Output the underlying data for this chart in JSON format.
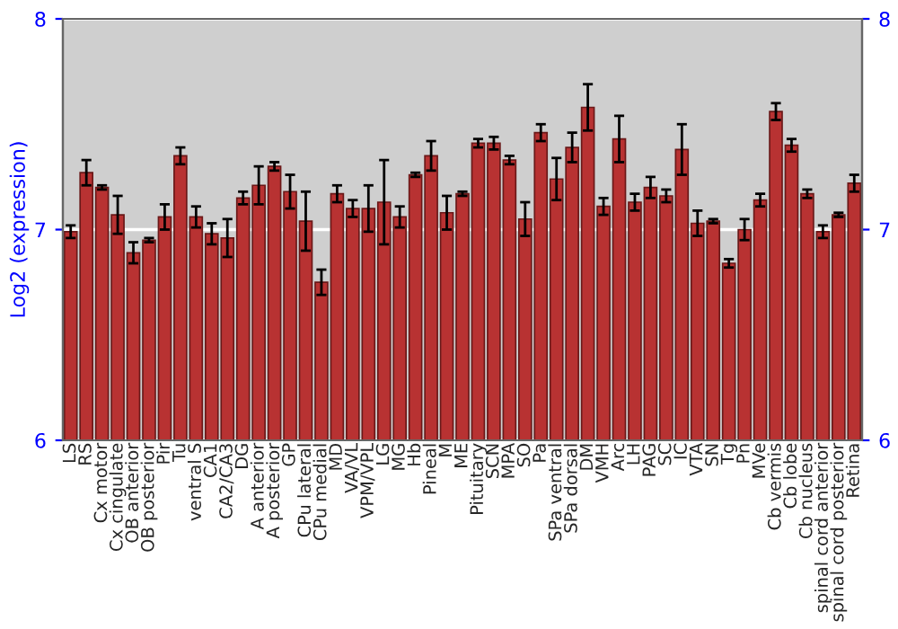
{
  "chart_data": {
    "type": "bar",
    "ylabel": "Log2 (expression)",
    "categories": [
      "LS",
      "RS",
      "Cx motor",
      "Cx cingulate",
      "OB anterior",
      "OB posterior",
      "Pir",
      "Tu",
      "ventral S",
      "CA1",
      "CA2/CA3",
      "DG",
      "A anterior",
      "A posterior",
      "GP",
      "CPu lateral",
      "CPu medial",
      "MD",
      "VA/VL",
      "VPM/VPL",
      "LG",
      "MG",
      "Hb",
      "Pineal",
      "M",
      "ME",
      "Pituitary",
      "SCN",
      "MPA",
      "SO",
      "Pa",
      "SPa ventral",
      "SPa dorsal",
      "DM",
      "VMH",
      "Arc",
      "LH",
      "PAG",
      "SC",
      "IC",
      "VTA",
      "SN",
      "Tg",
      "Pn",
      "MVe",
      "Cb vermis",
      "Cb lobe",
      "Cb nucleus",
      "spinal cord anterior",
      "spinal cord posterior",
      "Retina"
    ],
    "values": [
      6.99,
      7.27,
      7.2,
      7.07,
      6.89,
      6.95,
      7.06,
      7.35,
      7.06,
      6.98,
      6.96,
      7.15,
      7.21,
      7.3,
      7.18,
      7.04,
      6.75,
      7.17,
      7.1,
      7.1,
      7.13,
      7.06,
      7.26,
      7.35,
      7.08,
      7.17,
      7.41,
      7.41,
      7.33,
      7.05,
      7.46,
      7.24,
      7.39,
      7.58,
      7.11,
      7.43,
      7.13,
      7.2,
      7.16,
      7.38,
      7.03,
      7.04,
      6.84,
      7.0,
      7.14,
      7.56,
      7.4,
      7.17,
      6.99,
      7.07,
      7.22
    ],
    "errors": [
      0.03,
      0.06,
      0.01,
      0.09,
      0.05,
      0.01,
      0.06,
      0.04,
      0.05,
      0.05,
      0.09,
      0.03,
      0.09,
      0.02,
      0.08,
      0.14,
      0.06,
      0.04,
      0.04,
      0.11,
      0.2,
      0.05,
      0.01,
      0.07,
      0.08,
      0.01,
      0.02,
      0.03,
      0.02,
      0.08,
      0.04,
      0.1,
      0.07,
      0.11,
      0.04,
      0.11,
      0.04,
      0.05,
      0.03,
      0.12,
      0.06,
      0.01,
      0.02,
      0.05,
      0.03,
      0.04,
      0.03,
      0.02,
      0.03,
      0.01,
      0.04
    ],
    "color": "#b83232",
    "ylim": [
      6,
      8
    ],
    "yticks": [
      6,
      7,
      8
    ],
    "y2lim": [
      6,
      8
    ],
    "y2ticks": [
      6,
      7,
      8
    ],
    "grid": "y"
  }
}
